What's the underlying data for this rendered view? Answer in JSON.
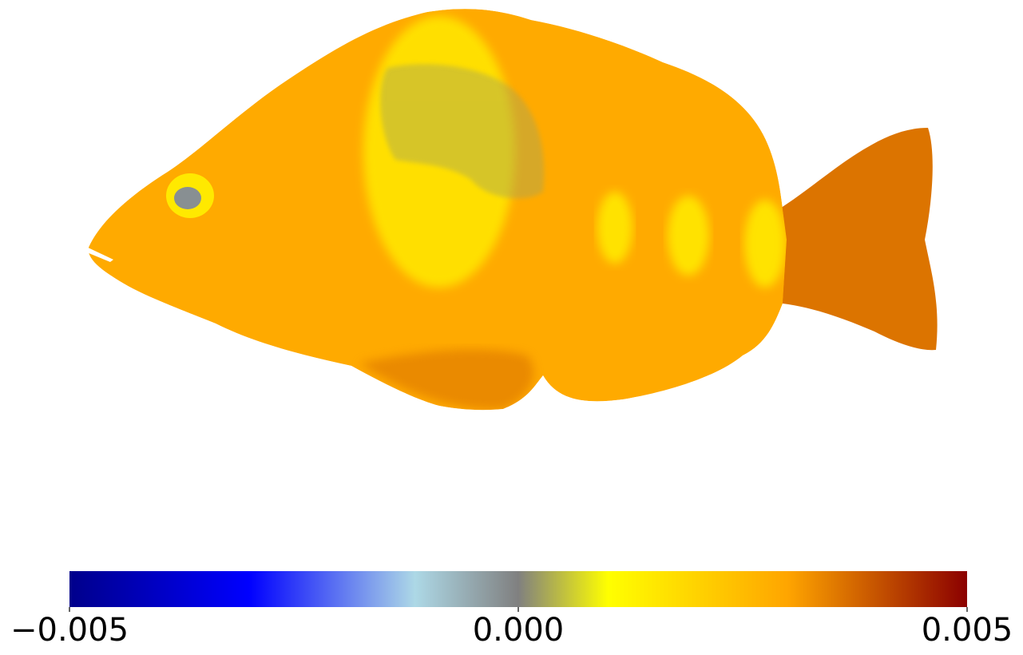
{
  "chart_data": {
    "type": "heatmap",
    "subject": "fish surface render colored by scalar value",
    "colorbar": {
      "orientation": "horizontal",
      "vmin": -0.005,
      "vmax": 0.005,
      "ticks": [
        -0.005,
        0.0,
        0.005
      ],
      "tick_labels": [
        "−0.005",
        "0.000",
        "0.005"
      ],
      "colormap": [
        {
          "pos": 0.0,
          "color": "#00008b"
        },
        {
          "pos": 0.2,
          "color": "#0000ff"
        },
        {
          "pos": 0.385,
          "color": "#add8e6"
        },
        {
          "pos": 0.5,
          "color": "#808080"
        },
        {
          "pos": 0.6,
          "color": "#ffff00"
        },
        {
          "pos": 0.8,
          "color": "#ffa500"
        },
        {
          "pos": 1.0,
          "color": "#8b0000"
        }
      ]
    },
    "surface_values": {
      "body": 0.0029,
      "eye": -0.0002,
      "fin_patch": 0.0003,
      "tail": 0.0036,
      "bright_bands": 0.0015
    }
  }
}
